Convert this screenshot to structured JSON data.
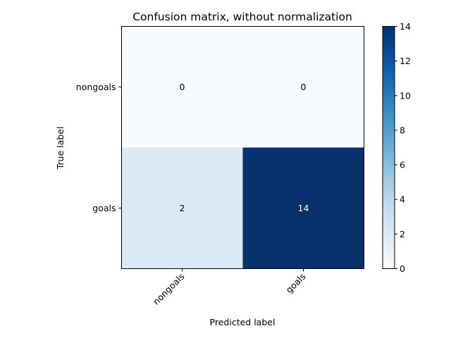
{
  "chart_data": {
    "type": "heatmap",
    "title": "Confusion matrix, without normalization",
    "xlabel": "Predicted label",
    "ylabel": "True label",
    "x_categories": [
      "nongoals",
      "goals"
    ],
    "y_categories": [
      "nongoals",
      "goals"
    ],
    "values": [
      [
        0,
        0
      ],
      [
        2,
        14
      ]
    ],
    "cell_labels": [
      [
        "0",
        "0"
      ],
      [
        "2",
        "14"
      ]
    ],
    "colormap": "Blues",
    "colorbar": {
      "range": [
        0,
        14
      ],
      "ticks": [
        0,
        2,
        4,
        6,
        8,
        10,
        12,
        14
      ],
      "tick_labels": [
        "0",
        "2",
        "4",
        "6",
        "8",
        "10",
        "12",
        "14"
      ]
    },
    "colors": {
      "low": "#f7fbff",
      "high": "#08306b",
      "text_dark": "#000000",
      "text_light": "#ffffff"
    }
  }
}
